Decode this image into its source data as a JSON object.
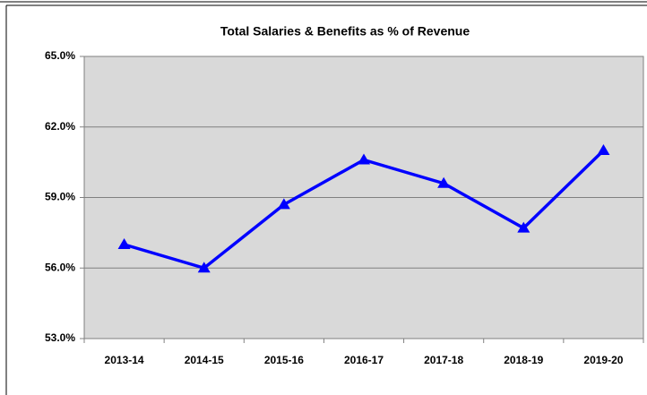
{
  "chart_data": {
    "type": "line",
    "title": "Total Salaries & Benefits as % of Revenue",
    "categories": [
      "2013-14",
      "2014-15",
      "2015-16",
      "2016-17",
      "2017-18",
      "2018-19",
      "2019-20"
    ],
    "values": [
      57.0,
      56.0,
      58.7,
      60.6,
      59.6,
      57.7,
      61.0
    ],
    "color": "#0000ff",
    "ylim": [
      53,
      65
    ],
    "yticks": [
      {
        "value": 53,
        "label": "53.0%"
      },
      {
        "value": 56,
        "label": "56.0%"
      },
      {
        "value": 59,
        "label": "59.0%"
      },
      {
        "value": 62,
        "label": "62.0%"
      },
      {
        "value": 65,
        "label": "65.0%"
      }
    ],
    "grid": true
  }
}
